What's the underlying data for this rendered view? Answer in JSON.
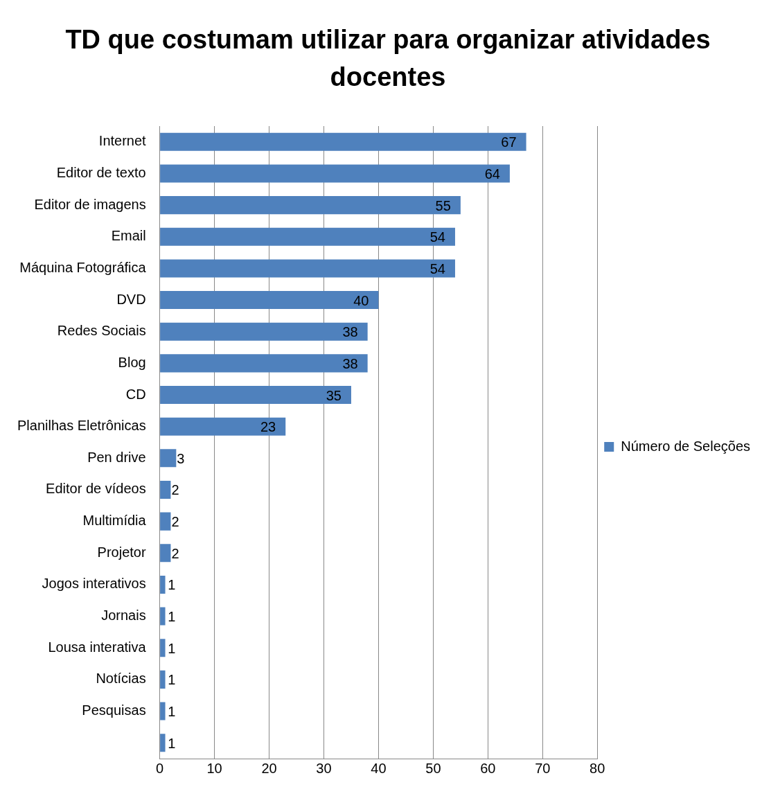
{
  "chart_data": {
    "type": "bar",
    "orientation": "horizontal",
    "title": "TD que costumam utilizar para organizar atividades docentes",
    "categories": [
      "Internet",
      "Editor de texto",
      "Editor de imagens",
      "Email",
      "Máquina Fotográfica",
      "DVD",
      "Redes Sociais",
      "Blog",
      "CD",
      "Planilhas Eletrônicas",
      "Pen drive",
      "Editor de vídeos",
      "Multimídia",
      "Projetor",
      "Jogos interativos",
      "Jornais",
      "Lousa interativa",
      "Notícias",
      "Pesquisas",
      null
    ],
    "series": [
      {
        "name": "Número de Seleções",
        "color": "#4f81bd",
        "values": [
          67,
          64,
          55,
          54,
          54,
          40,
          38,
          38,
          35,
          23,
          3,
          2,
          2,
          2,
          1,
          1,
          1,
          1,
          1,
          1
        ]
      }
    ],
    "xlim": [
      0,
      80
    ],
    "xticks": [
      0,
      10,
      20,
      30,
      40,
      50,
      60,
      70,
      80
    ],
    "grid": "x",
    "legend": "right",
    "data_labels": true
  }
}
